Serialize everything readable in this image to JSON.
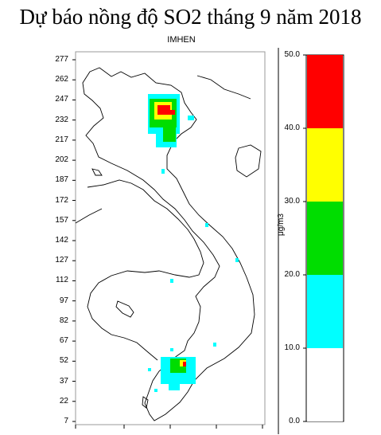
{
  "title": "Dự báo nồng độ SO2 tháng 9 năm 2018",
  "subtitle": "IMHEN",
  "y_ticks": [
    "277",
    "262",
    "247",
    "232",
    "217",
    "202",
    "187",
    "172",
    "157",
    "142",
    "127",
    "112",
    "97",
    "82",
    "67",
    "52",
    "37",
    "22",
    "7"
  ],
  "colorbar": {
    "unit": "μg/m3",
    "ticks": [
      "50.0",
      "40.0",
      "30.0",
      "20.0",
      "10.0",
      "0.0"
    ],
    "bands": [
      {
        "from": 40,
        "to": 50,
        "color": "#ff0000"
      },
      {
        "from": 30,
        "to": 40,
        "color": "#ffff00"
      },
      {
        "from": 20,
        "to": 30,
        "color": "#00dd00"
      },
      {
        "from": 10,
        "to": 20,
        "color": "#00ffff"
      },
      {
        "from": 0,
        "to": 10,
        "color": "#ffffff"
      }
    ]
  },
  "colors": {
    "high": "#ff0000",
    "mid_high": "#ffff00",
    "mid": "#00dd00",
    "low": "#00ffff"
  }
}
